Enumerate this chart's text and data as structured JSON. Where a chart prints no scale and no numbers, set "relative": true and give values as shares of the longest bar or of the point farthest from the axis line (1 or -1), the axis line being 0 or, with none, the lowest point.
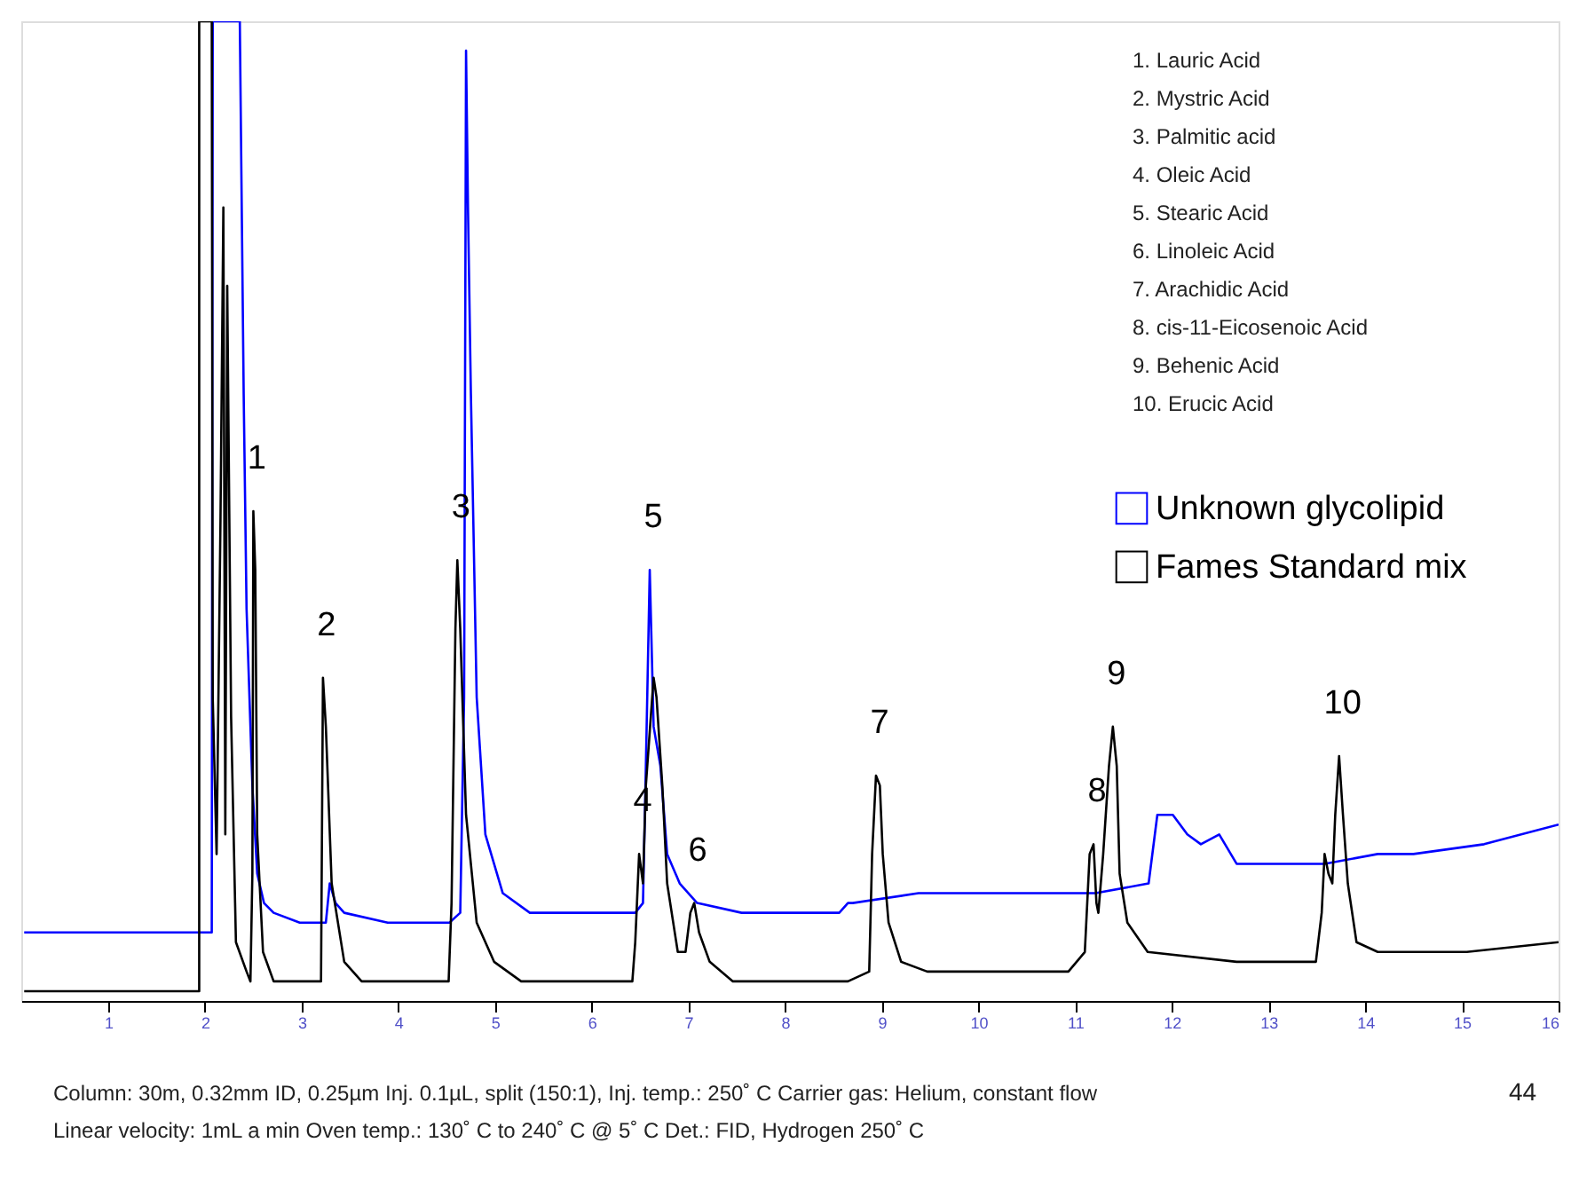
{
  "chart_data": {
    "type": "line",
    "relative": true,
    "xlim": [
      0.1,
      16
    ],
    "xticks": [
      1,
      2,
      3,
      4,
      5,
      6,
      7,
      8,
      9,
      10,
      11,
      12,
      13,
      14,
      15,
      16
    ],
    "legend": "right",
    "series": [
      {
        "name": "Unknown glycolipid",
        "color": "#0000ff",
        "x": [
          0.13,
          2.07,
          2.08,
          2.36,
          2.4,
          2.43,
          2.49,
          2.54,
          2.61,
          2.71,
          2.98,
          3.25,
          3.29,
          3.35,
          3.44,
          3.89,
          4.53,
          4.64,
          4.68,
          4.7,
          4.72,
          4.75,
          4.81,
          4.9,
          5.08,
          5.36,
          6.27,
          6.45,
          6.53,
          6.56,
          6.6,
          6.64,
          6.71,
          6.78,
          6.91,
          7.09,
          7.55,
          8.1,
          8.56,
          8.65,
          8.7,
          9.38,
          9.74,
          10.11,
          10.84,
          11.21,
          11.76,
          11.85,
          12.01,
          12.16,
          12.3,
          12.49,
          12.67,
          13.03,
          13.58,
          14.13,
          14.5,
          15.23,
          16.0
        ],
        "values": [
          0.07,
          0.07,
          1.0,
          1.0,
          0.62,
          0.4,
          0.22,
          0.13,
          0.1,
          0.09,
          0.08,
          0.08,
          0.12,
          0.1,
          0.09,
          0.08,
          0.08,
          0.09,
          0.31,
          0.97,
          0.81,
          0.62,
          0.31,
          0.17,
          0.11,
          0.09,
          0.09,
          0.09,
          0.1,
          0.24,
          0.44,
          0.28,
          0.24,
          0.15,
          0.12,
          0.1,
          0.09,
          0.09,
          0.09,
          0.1,
          0.1,
          0.11,
          0.11,
          0.11,
          0.11,
          0.11,
          0.12,
          0.19,
          0.19,
          0.17,
          0.16,
          0.17,
          0.14,
          0.14,
          0.14,
          0.15,
          0.15,
          0.16,
          0.18
        ]
      },
      {
        "name": "Fames Standard mix",
        "color": "#000000",
        "x": [
          0.13,
          1.94,
          1.94,
          2.07,
          2.08,
          2.12,
          2.16,
          2.19,
          2.21,
          2.23,
          2.27,
          2.32,
          2.43,
          2.47,
          2.49,
          2.5,
          2.52,
          2.54,
          2.6,
          2.71,
          2.89,
          3.16,
          3.2,
          3.22,
          3.25,
          3.31,
          3.44,
          3.62,
          4.52,
          4.55,
          4.59,
          4.61,
          4.64,
          4.7,
          4.81,
          4.99,
          5.27,
          6.42,
          6.45,
          6.49,
          6.53,
          6.56,
          6.64,
          6.67,
          6.73,
          6.78,
          6.89,
          6.97,
          7.02,
          7.06,
          7.11,
          7.22,
          7.46,
          8.1,
          8.65,
          8.87,
          8.9,
          8.94,
          8.98,
          9.01,
          9.07,
          9.2,
          9.47,
          10.02,
          10.93,
          11.1,
          11.15,
          11.19,
          11.22,
          11.24,
          11.29,
          11.35,
          11.39,
          11.43,
          11.46,
          11.54,
          11.75,
          12.67,
          13.49,
          13.55,
          13.58,
          13.62,
          13.66,
          13.69,
          13.73,
          13.77,
          13.82,
          13.91,
          14.13,
          15.05,
          16.0
        ],
        "values": [
          0.01,
          0.01,
          1.0,
          1.0,
          0.31,
          0.15,
          0.49,
          0.81,
          0.17,
          0.73,
          0.29,
          0.06,
          0.03,
          0.02,
          0.13,
          0.5,
          0.44,
          0.17,
          0.05,
          0.02,
          0.02,
          0.02,
          0.02,
          0.33,
          0.28,
          0.12,
          0.04,
          0.02,
          0.02,
          0.1,
          0.38,
          0.45,
          0.38,
          0.19,
          0.08,
          0.04,
          0.02,
          0.02,
          0.06,
          0.15,
          0.12,
          0.22,
          0.33,
          0.31,
          0.22,
          0.12,
          0.05,
          0.05,
          0.09,
          0.1,
          0.07,
          0.04,
          0.02,
          0.02,
          0.02,
          0.03,
          0.15,
          0.23,
          0.22,
          0.15,
          0.08,
          0.04,
          0.03,
          0.03,
          0.03,
          0.05,
          0.15,
          0.16,
          0.1,
          0.09,
          0.15,
          0.24,
          0.28,
          0.24,
          0.13,
          0.08,
          0.05,
          0.04,
          0.04,
          0.09,
          0.15,
          0.13,
          0.12,
          0.19,
          0.25,
          0.19,
          0.12,
          0.06,
          0.05,
          0.05,
          0.06
        ]
      }
    ],
    "annotations": [
      {
        "text": "1",
        "x": 2.5,
        "y": 0.5
      },
      {
        "text": "2",
        "x": 3.22,
        "y": 0.33
      },
      {
        "text": "3",
        "x": 4.61,
        "y": 0.45
      },
      {
        "text": "4",
        "x": 6.49,
        "y": 0.15
      },
      {
        "text": "5",
        "x": 6.6,
        "y": 0.44
      },
      {
        "text": "6",
        "x": 7.06,
        "y": 0.1
      },
      {
        "text": "7",
        "x": 8.94,
        "y": 0.23
      },
      {
        "text": "8",
        "x": 11.19,
        "y": 0.16
      },
      {
        "text": "9",
        "x": 11.39,
        "y": 0.28
      },
      {
        "text": "10",
        "x": 13.73,
        "y": 0.25
      },
      "1.   Lauric Acid",
      "2.   Mystric Acid",
      "3.   Palmitic acid",
      "4.   Oleic Acid",
      "5.   Stearic Acid",
      "6.   Linoleic Acid",
      "7.   Arachidic Acid",
      "8.   cis-11-Eicosenoic Acid",
      "9.   Behenic Acid",
      "10. Erucic Acid",
      "Column: 30m, 0.32mm ID, 0.25µm Inj.  0.1µL,  split (150:1),  Inj. temp.: 250˚ C Carrier gas: Helium, constant flow",
      "Linear velocity: 1mL a min Oven temp.: 130˚ C to 240˚ C @ 5˚ C Det.: FID,  Hydrogen 250˚ C",
      "44"
    ]
  }
}
